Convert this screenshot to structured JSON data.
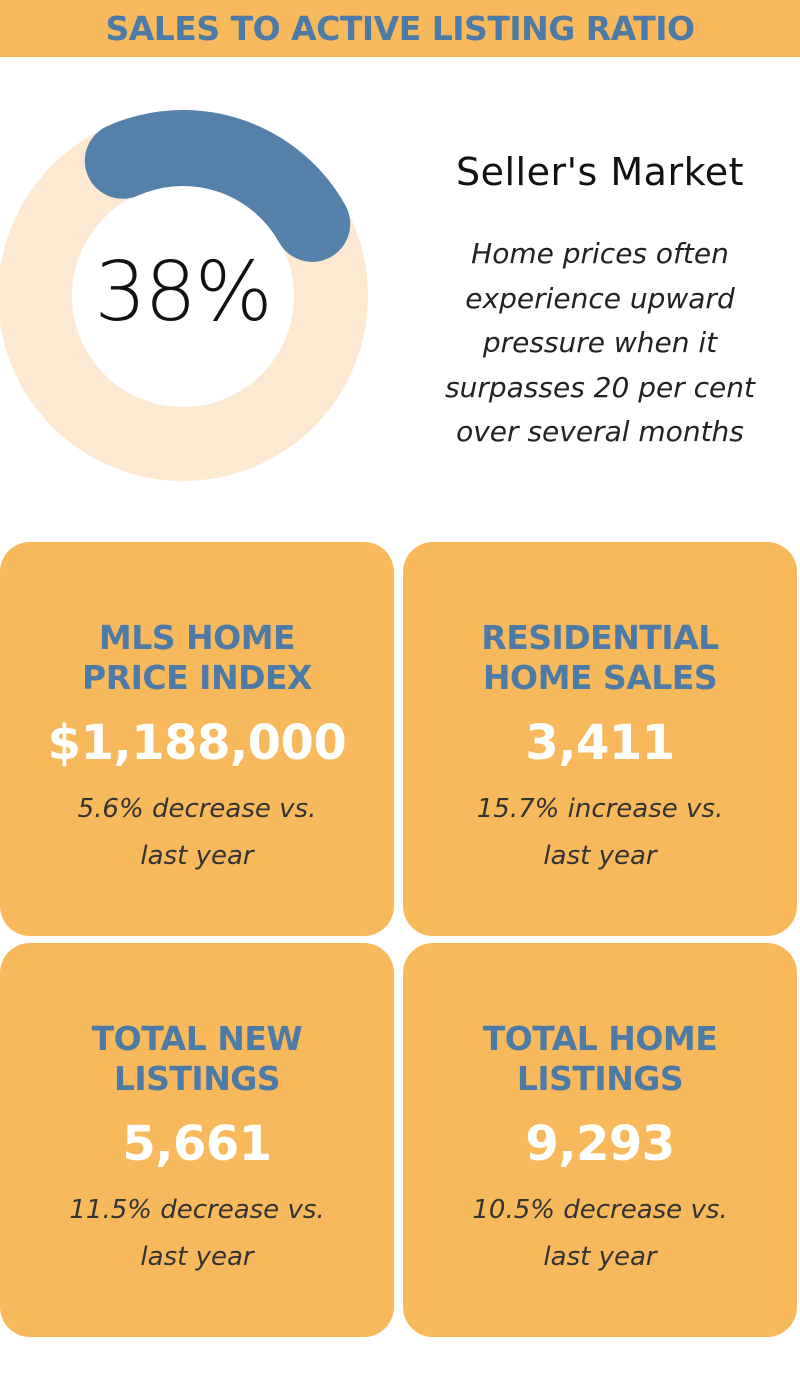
{
  "header": {
    "title": "SALES TO ACTIVE LISTING RATIO"
  },
  "ratio": {
    "value_label": "38%",
    "fraction": 0.38,
    "track_color": "#fde9d2",
    "fill_color": "#5580a9"
  },
  "market": {
    "title": "Seller's Market",
    "description": "Home prices often experience upward pressure when it surpasses 20 per cent over several months"
  },
  "cards": [
    {
      "title": "MLS HOME\nPRICE INDEX",
      "value": "$1,188,000",
      "note": "5.6% decrease vs.\nlast year"
    },
    {
      "title": "RESIDENTIAL\nHOME SALES",
      "value": "3,411",
      "note": "15.7% increase vs.\nlast year"
    },
    {
      "title": "TOTAL NEW\nLISTINGS",
      "value": "5,661",
      "note": "11.5% decrease vs.\nlast year"
    },
    {
      "title": "TOTAL HOME\nLISTINGS",
      "value": "9,293",
      "note": "10.5% decrease vs.\nlast year"
    }
  ],
  "colors": {
    "accent_orange": "#f8b95c",
    "title_blue": "#4e7aa6",
    "value_white": "#ffffff"
  }
}
